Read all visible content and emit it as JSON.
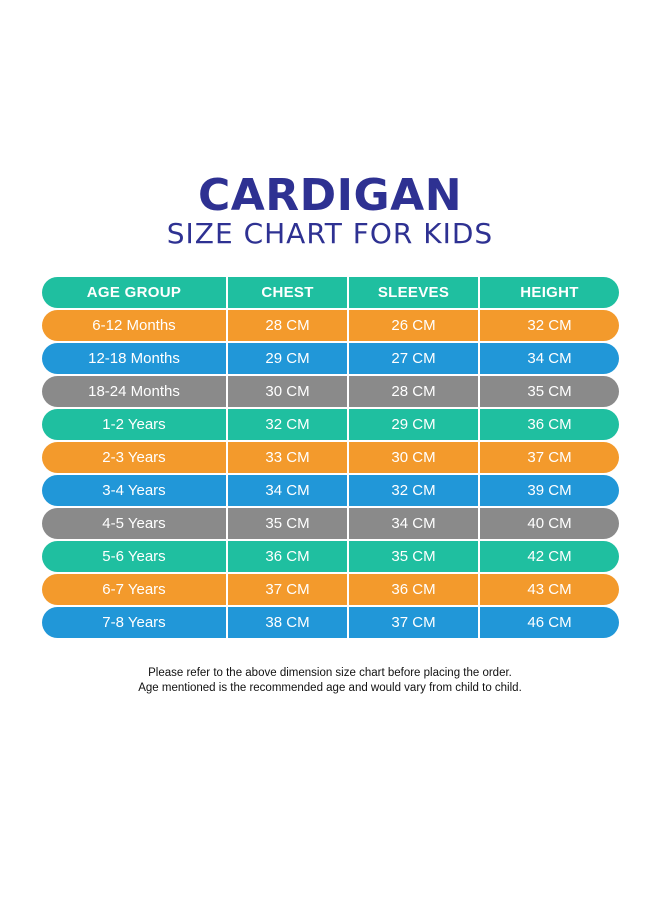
{
  "title": "CARDIGAN",
  "subtitle": "SIZE CHART FOR KIDS",
  "colors": {
    "teal": "#1fbfa0",
    "orange": "#f39a2c",
    "blue": "#2197d8",
    "gray": "#8a8a8a",
    "title": "#2e3192"
  },
  "table": {
    "headers": [
      "AGE GROUP",
      "CHEST",
      "SLEEVES",
      "HEIGHT"
    ],
    "header_color": "#1fbfa0",
    "rows": [
      {
        "cells": [
          "6-12 Months",
          "28 CM",
          "26 CM",
          "32 CM"
        ],
        "color": "#f39a2c"
      },
      {
        "cells": [
          "12-18 Months",
          "29 CM",
          "27 CM",
          "34 CM"
        ],
        "color": "#2197d8"
      },
      {
        "cells": [
          "18-24 Months",
          "30 CM",
          "28 CM",
          "35 CM"
        ],
        "color": "#8a8a8a"
      },
      {
        "cells": [
          "1-2 Years",
          "32 CM",
          "29 CM",
          "36 CM"
        ],
        "color": "#1fbfa0"
      },
      {
        "cells": [
          "2-3 Years",
          "33 CM",
          "30 CM",
          "37 CM"
        ],
        "color": "#f39a2c"
      },
      {
        "cells": [
          "3-4 Years",
          "34 CM",
          "32 CM",
          "39 CM"
        ],
        "color": "#2197d8"
      },
      {
        "cells": [
          "4-5 Years",
          "35 CM",
          "34 CM",
          "40 CM"
        ],
        "color": "#8a8a8a"
      },
      {
        "cells": [
          "5-6 Years",
          "36 CM",
          "35 CM",
          "42 CM"
        ],
        "color": "#1fbfa0"
      },
      {
        "cells": [
          "6-7 Years",
          "37 CM",
          "36 CM",
          "43 CM"
        ],
        "color": "#f39a2c"
      },
      {
        "cells": [
          "7-8 Years",
          "38 CM",
          "37 CM",
          "46 CM"
        ],
        "color": "#2197d8"
      }
    ]
  },
  "footer": {
    "line1": "Please refer to the above dimension size chart before placing the order.",
    "line2": "Age mentioned is the recommended age and would vary from child to child."
  }
}
